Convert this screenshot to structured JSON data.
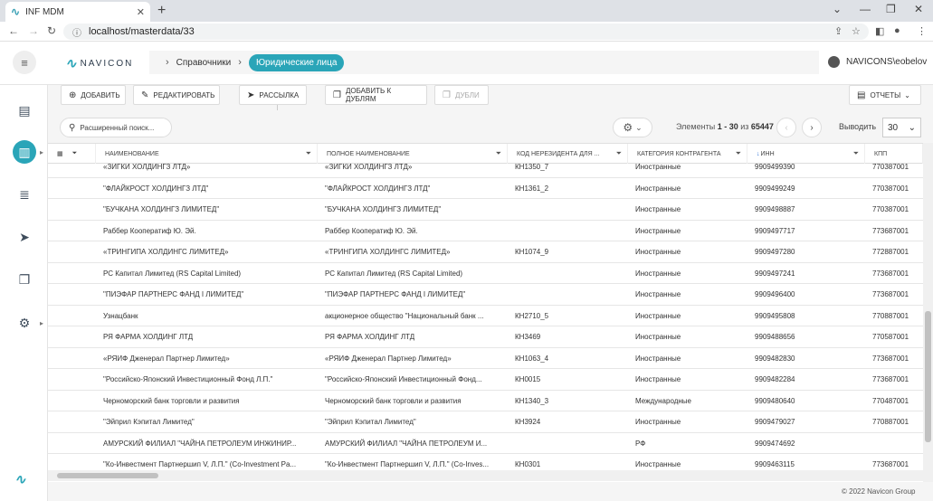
{
  "browser": {
    "tab_title": "INF MDM",
    "favicon": "navicon-logo-icon",
    "url": "localhost/masterdata/33"
  },
  "header": {
    "logo_text": "NAVICON",
    "breadcrumb_1": "Справочники",
    "breadcrumb_2": "Юридические лица",
    "user": "NAVICONS\\eobelov"
  },
  "toolbar": {
    "add": "Добавить",
    "edit": "Редактировать",
    "mailing": "Рассылка",
    "add_dup": "Добавить к дублям",
    "dups": "Дубли",
    "reports": "Отчеты"
  },
  "filter": {
    "search": "Расширенный поиск...",
    "counter_prefix": "Элементы",
    "counter_range": "1 - 30",
    "counter_mid": "из",
    "counter_total": "65447",
    "per_page_label": "Выводить",
    "per_page": "30"
  },
  "columns": {
    "name": "Наименование",
    "full_name": "Полное наименование",
    "code": "Код нерезидента для ...",
    "category": "Категория контрагента",
    "inn": "ИНН",
    "kpp": "КПП"
  },
  "rows": [
    {
      "name": "«ЗИГКИ ХОЛДИНГЗ ЛТД»",
      "full": "«ЗИГКИ ХОЛДИНГЗ ЛТД»",
      "code": "КН1350_7",
      "cat": "Иностранные",
      "inn": "9909499390",
      "kpp": "770387001"
    },
    {
      "name": "\"ФЛАЙКРОСТ ХОЛДИНГЗ ЛТД\"",
      "full": "\"ФЛАЙКРОСТ ХОЛДИНГЗ ЛТД\"",
      "code": "КН1361_2",
      "cat": "Иностранные",
      "inn": "9909499249",
      "kpp": "770387001"
    },
    {
      "name": "\"БУЧКАНА ХОЛДИНГЗ ЛИМИТЕД\"",
      "full": "\"БУЧКАНА ХОЛДИНГЗ ЛИМИТЕД\"",
      "code": "",
      "cat": "Иностранные",
      "inn": "9909498887",
      "kpp": "770387001"
    },
    {
      "name": "Раббер Кооператиф Ю. Эй.",
      "full": "Раббер Кооператиф Ю. Эй.",
      "code": "",
      "cat": "Иностранные",
      "inn": "9909497717",
      "kpp": "773687001"
    },
    {
      "name": "«ТРИНГИПА ХОЛДИНГС ЛИМИТЕД»",
      "full": "«ТРИНГИПА ХОЛДИНГС ЛИМИТЕД»",
      "code": "КН1074_9",
      "cat": "Иностранные",
      "inn": "9909497280",
      "kpp": "772887001"
    },
    {
      "name": "РС Капитал Лимитед (RS Capital Limited)",
      "full": "РС Капитал Лимитед (RS Capital Limited)",
      "code": "",
      "cat": "Иностранные",
      "inn": "9909497241",
      "kpp": "773687001"
    },
    {
      "name": "\"ПИЭФАР ПАРТНЕРС ФАНД І ЛИМИТЕД\"",
      "full": "\"ПИЭФАР ПАРТНЕРС ФАНД І ЛИМИТЕД\"",
      "code": "",
      "cat": "Иностранные",
      "inn": "9909496400",
      "kpp": "773687001"
    },
    {
      "name": "Узнацбанк",
      "full": "акционерное общество \"Национальный банк ...",
      "code": "КН2710_5",
      "cat": "Иностранные",
      "inn": "9909495808",
      "kpp": "770887001"
    },
    {
      "name": "РЯ ФАРМА ХОЛДИНГ ЛТД",
      "full": "РЯ ФАРМА ХОЛДИНГ ЛТД",
      "code": "КН3469",
      "cat": "Иностранные",
      "inn": "9909488656",
      "kpp": "770587001"
    },
    {
      "name": "«РЯИФ Дженерал Партнер Лимитед»",
      "full": "«РЯИФ Дженерал Партнер Лимитед»",
      "code": "КН1063_4",
      "cat": "Иностранные",
      "inn": "9909482830",
      "kpp": "773687001"
    },
    {
      "name": "\"Российско-Японский Инвестиционный Фонд Л.П.\"",
      "full": "\"Российско-Японский Инвестиционный Фонд...",
      "code": "КН0015",
      "cat": "Иностранные",
      "inn": "9909482284",
      "kpp": "773687001"
    },
    {
      "name": "Черноморский банк торговли и развития",
      "full": "Черноморский банк торговли и развития",
      "code": "КН1340_3",
      "cat": "Международные",
      "inn": "9909480640",
      "kpp": "770487001"
    },
    {
      "name": "\"Эйприл Кэпитал Лимитед\"",
      "full": "\"Эйприл Кэпитал Лимитед\"",
      "code": "КН3924",
      "cat": "Иностранные",
      "inn": "9909479027",
      "kpp": "770887001"
    },
    {
      "name": "АМУРСКИЙ ФИЛИАЛ \"ЧАЙНА ПЕТРОЛЕУМ ИНЖИНИР...",
      "full": "АМУРСКИЙ ФИЛИАЛ \"ЧАЙНА ПЕТРОЛЕУМ И...",
      "code": "",
      "cat": "РФ",
      "inn": "9909474692",
      "kpp": ""
    },
    {
      "name": "\"Ко-Инвестмент Партнершип V, Л.П.\" (Co-Investment Pa...",
      "full": "\"Ко-Инвестмент Партнершип V, Л.П.\" (Co-Inves...",
      "code": "КН0301",
      "cat": "Иностранные",
      "inn": "9909463115",
      "kpp": "773687001"
    }
  ],
  "footer": "© 2022 Navicon Group",
  "colors": {
    "accent": "#2aa5b8",
    "sort": "#2a6fd6"
  }
}
